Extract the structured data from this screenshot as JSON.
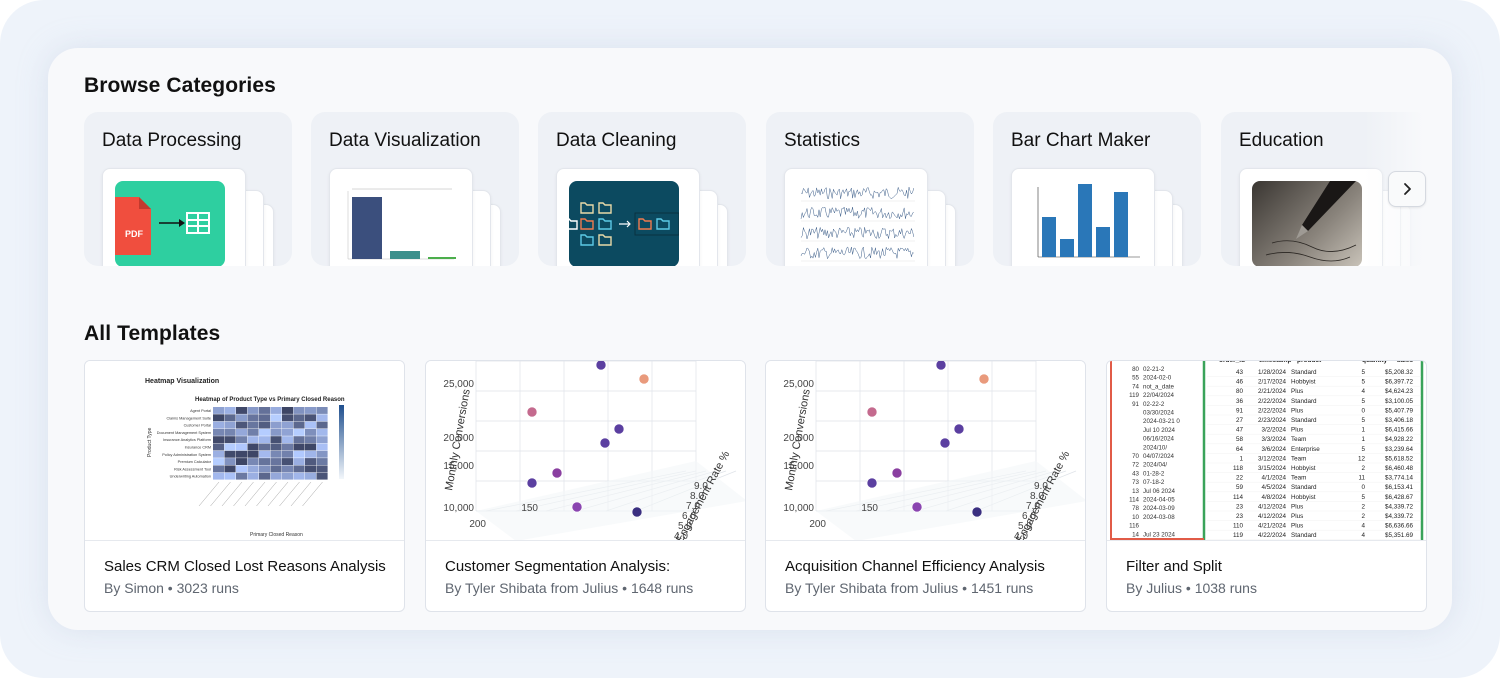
{
  "browse": {
    "title": "Browse Categories",
    "categories": [
      {
        "label": "Data Processing"
      },
      {
        "label": "Data Visualization"
      },
      {
        "label": "Data Cleaning"
      },
      {
        "label": "Statistics"
      },
      {
        "label": "Bar Chart Maker"
      },
      {
        "label": "Education"
      }
    ],
    "icons": {
      "pdf_label": "PDF",
      "next": "chevron-right-icon"
    }
  },
  "templates": {
    "title": "All Templates",
    "items": [
      {
        "title": "Sales CRM Closed Lost Reasons Analysis",
        "meta": "By Simon • 3023 runs",
        "preview": {
          "heading": "Heatmap Visualization",
          "chart_title": "Heatmap of Product Type vs Primary Closed Reason",
          "xlabel": "Primary Closed Reason",
          "ylabel": "Product Type",
          "rows": [
            "Agent Portal",
            "Claims Management Suite",
            "Customer Portal",
            "Document Management System",
            "Insurance Analytics Platform",
            "Insurance CRM",
            "Policy Administration System",
            "Premium Calculator",
            "Risk Assessment Tool",
            "Underwriting Automation"
          ]
        }
      },
      {
        "title": "Customer Segmentation Analysis:",
        "meta": "By Tyler Shibata from Julius • 1648 runs",
        "preview": {
          "zlabel": "Monthly Conversions",
          "ylabel": "Engagement Rate %",
          "z_ticks": [
            "25,000",
            "20,000",
            "15,000",
            "10,000"
          ],
          "x_ticks": [
            "200",
            "150"
          ],
          "y_ticks": [
            "9.0",
            "8.0",
            "7.0",
            "6.0",
            "5.0",
            "4.0",
            "3.0"
          ]
        }
      },
      {
        "title": "Acquisition Channel Efficiency Analysis",
        "meta": "By Tyler Shibata from Julius • 1451 runs",
        "preview": {
          "zlabel": "Monthly Conversions",
          "ylabel": "Engagement Rate %",
          "z_ticks": [
            "25,000",
            "20,000",
            "15,000",
            "10,000"
          ],
          "x_ticks": [
            "200",
            "150"
          ],
          "y_ticks": [
            "9.0",
            "8.0",
            "7.0",
            "6.0",
            "5.0",
            "4.0",
            "3.0"
          ]
        }
      },
      {
        "title": "Filter and Split",
        "meta": "By Julius • 1038 runs",
        "preview": {
          "headers": [
            "order_id",
            "timestamp",
            "product",
            "quantity",
            "sales"
          ],
          "left_col": [
            [
              "80",
              "02-21-2"
            ],
            [
              "55",
              "2024-02-0"
            ],
            [
              "74",
              "not_a_date"
            ],
            [
              "119",
              "22/04/2024"
            ],
            [
              "91",
              "02-22-2"
            ],
            [
              "",
              "03/30/2024"
            ],
            [
              "",
              "2024-03-21 0"
            ],
            [
              "",
              "Jul 10 2024"
            ],
            [
              "",
              "06/16/2024"
            ],
            [
              "",
              "2024/10/"
            ],
            [
              "70",
              "04/07/2024"
            ],
            [
              "72",
              "2024/04/"
            ],
            [
              "43",
              "01-28-2"
            ],
            [
              "73",
              "07-18-2"
            ],
            [
              "13",
              "Jul 06 2024"
            ],
            [
              "114",
              "2024-04-05"
            ],
            [
              "78",
              "2024-03-09"
            ],
            [
              "10",
              "2024-03-08"
            ],
            [
              "116",
              ""
            ],
            [
              "14",
              "Jul 23 2024"
            ]
          ],
          "rows": [
            [
              "43",
              "1/28/2024",
              "Standard",
              "5",
              "$5,208.32"
            ],
            [
              "46",
              "2/17/2024",
              "Hobbyist",
              "5",
              "$6,397.72"
            ],
            [
              "80",
              "2/21/2024",
              "Plus",
              "4",
              "$4,624.23"
            ],
            [
              "36",
              "2/22/2024",
              "Standard",
              "5",
              "$3,100.05"
            ],
            [
              "91",
              "2/22/2024",
              "Plus",
              "0",
              "$5,407.79"
            ],
            [
              "27",
              "2/23/2024",
              "Standard",
              "5",
              "$3,406.18"
            ],
            [
              "47",
              "3/2/2024",
              "Plus",
              "1",
              "$6,415.66"
            ],
            [
              "58",
              "3/3/2024",
              "Team",
              "1",
              "$4,928.22"
            ],
            [
              "64",
              "3/6/2024",
              "Enterprise",
              "5",
              "$3,239.64"
            ],
            [
              "1",
              "3/12/2024",
              "Team",
              "12",
              "$5,618.52"
            ],
            [
              "118",
              "3/15/2024",
              "Hobbyist",
              "2",
              "$6,460.48"
            ],
            [
              "22",
              "4/1/2024",
              "Team",
              "11",
              "$3,774.14"
            ],
            [
              "59",
              "4/5/2024",
              "Standard",
              "0",
              "$6,153.41"
            ],
            [
              "114",
              "4/8/2024",
              "Hobbyist",
              "5",
              "$6,428.67"
            ],
            [
              "23",
              "4/12/2024",
              "Plus",
              "2",
              "$4,339.72"
            ],
            [
              "23",
              "4/12/2024",
              "Plus",
              "2",
              "$4,339.72"
            ],
            [
              "110",
              "4/21/2024",
              "Plus",
              "4",
              "$6,636.66"
            ],
            [
              "119",
              "4/22/2024",
              "Standard",
              "4",
              "$5,351.69"
            ]
          ]
        }
      }
    ]
  },
  "colors": {
    "teal_card": "#2ecfa0",
    "pdf_red": "#f04e3e",
    "folder_bg": "#0c4a60",
    "bar_blue": "#2a77b8",
    "scatter_purple": "#5b3fa0",
    "scatter_peach": "#e99a7c"
  }
}
